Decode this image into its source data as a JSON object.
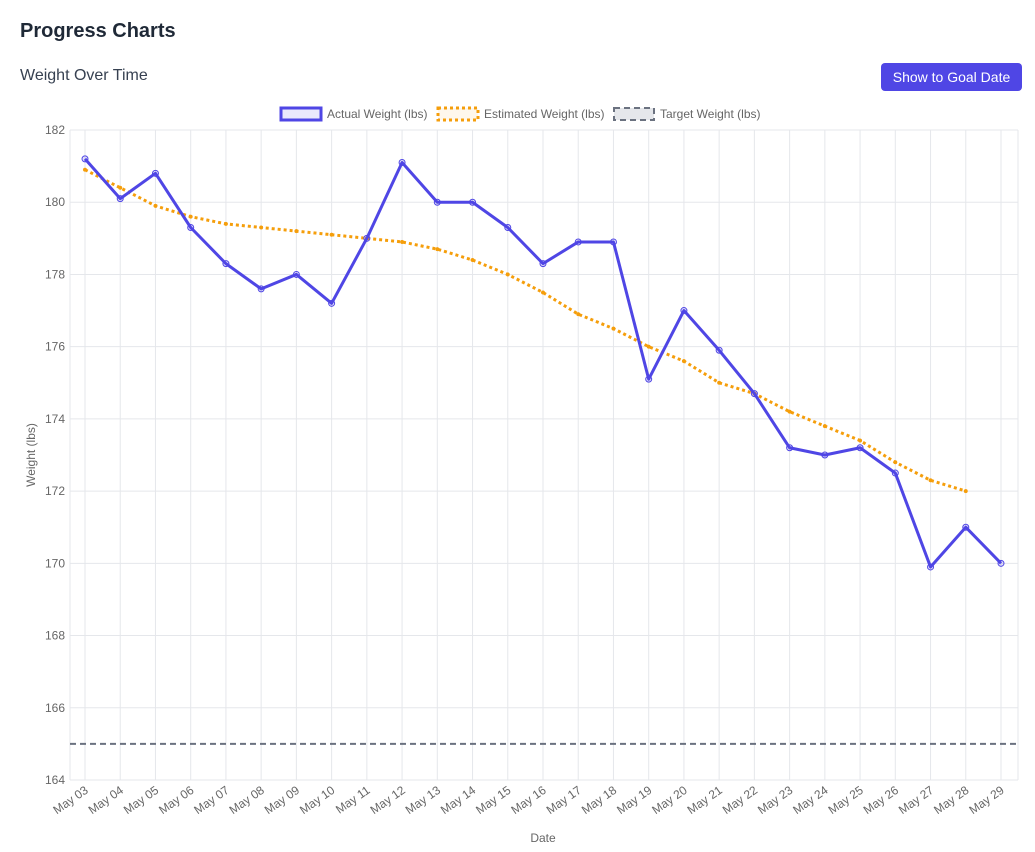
{
  "header": {
    "title": "Progress Charts"
  },
  "section": {
    "title": "Weight Over Time",
    "goal_button_label": "Show to Goal Date"
  },
  "colors": {
    "actual": "#4f46e5",
    "estimated": "#f59e0b",
    "target": "#6b7280",
    "grid": "#e5e7eb"
  },
  "chart_data": {
    "type": "line",
    "xlabel": "Date",
    "ylabel": "Weight (lbs)",
    "ylim": [
      164,
      182
    ],
    "yticks": [
      164,
      166,
      168,
      170,
      172,
      174,
      176,
      178,
      180,
      182
    ],
    "grid": true,
    "legend_position": "top",
    "categories": [
      "May 03",
      "May 04",
      "May 05",
      "May 06",
      "May 07",
      "May 08",
      "May 09",
      "May 10",
      "May 11",
      "May 12",
      "May 13",
      "May 14",
      "May 15",
      "May 16",
      "May 17",
      "May 18",
      "May 19",
      "May 20",
      "May 21",
      "May 22",
      "May 23",
      "May 24",
      "May 25",
      "May 26",
      "May 27",
      "May 28",
      "May 29"
    ],
    "series": [
      {
        "name": "Actual Weight (lbs)",
        "style": "solid",
        "values": [
          181.2,
          180.1,
          180.8,
          179.3,
          178.3,
          177.6,
          178.0,
          177.2,
          179.0,
          181.1,
          180.0,
          180.0,
          179.3,
          178.3,
          178.9,
          178.9,
          175.1,
          177.0,
          175.9,
          174.7,
          173.2,
          173.0,
          173.2,
          172.5,
          169.9,
          171.0,
          170.0
        ]
      },
      {
        "name": "Estimated Weight (lbs)",
        "style": "dotted",
        "values": [
          180.9,
          180.4,
          179.9,
          179.6,
          179.4,
          179.3,
          179.2,
          179.1,
          179.0,
          178.9,
          178.7,
          178.4,
          178.0,
          177.5,
          176.9,
          176.5,
          176.0,
          175.6,
          175.0,
          174.7,
          174.2,
          173.8,
          173.4,
          172.8,
          172.3,
          172.0,
          null
        ]
      },
      {
        "name": "Target Weight (lbs)",
        "style": "dashed",
        "values": [
          165,
          165,
          165,
          165,
          165,
          165,
          165,
          165,
          165,
          165,
          165,
          165,
          165,
          165,
          165,
          165,
          165,
          165,
          165,
          165,
          165,
          165,
          165,
          165,
          165,
          165,
          165
        ]
      }
    ]
  }
}
